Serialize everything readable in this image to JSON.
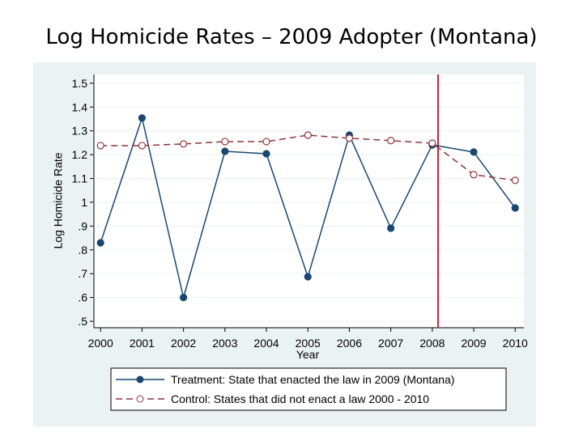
{
  "chart_data": {
    "type": "line",
    "title": "Log Homicide Rates – 2009 Adopter (Montana)",
    "x_label": "Year",
    "y_label": "Log Homicide Rate",
    "x": [
      2000,
      2001,
      2002,
      2003,
      2004,
      2005,
      2006,
      2007,
      2008,
      2009,
      2010
    ],
    "series": [
      {
        "name": "Treatment: State that enacted the law in 2009 (Montana)",
        "color": "#1a476f",
        "marker": "filled",
        "dash": false,
        "values": [
          0.83,
          1.354,
          0.6,
          1.214,
          1.204,
          0.687,
          1.282,
          0.891,
          1.241,
          1.211,
          0.976
        ]
      },
      {
        "name": "Control: States that did not enact a law 2000 - 2010",
        "color": "#90353b",
        "marker": "hollow",
        "dash": true,
        "values": [
          1.238,
          1.238,
          1.245,
          1.255,
          1.255,
          1.282,
          1.269,
          1.259,
          1.248,
          1.116,
          1.092
        ]
      }
    ],
    "xlim": [
      1999.84,
      2010.21
    ],
    "ylim": [
      0.473,
      1.537
    ],
    "xticks": [
      2000,
      2001,
      2002,
      2003,
      2004,
      2005,
      2006,
      2007,
      2008,
      2009,
      2010
    ],
    "yticks": [
      {
        "value": 0.5,
        "label": ".5"
      },
      {
        "value": 0.6,
        "label": ".6"
      },
      {
        "value": 0.7,
        "label": ".7"
      },
      {
        "value": 0.8,
        "label": ".8"
      },
      {
        "value": 0.9,
        "label": ".9"
      },
      1,
      1.1,
      1.2,
      1.3,
      1.4,
      1.5
    ],
    "vline": {
      "x": 2008.14,
      "color": "#c3243d"
    },
    "grid": true
  }
}
